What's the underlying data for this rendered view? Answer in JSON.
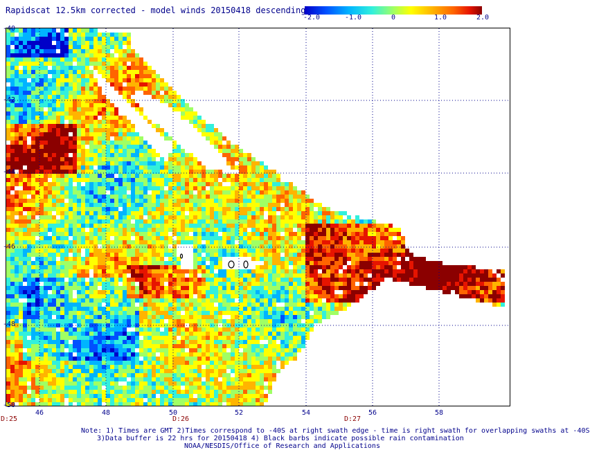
{
  "title": "Rapidscat 12.5km corrected - model winds 20150418 descending",
  "colorbar": {
    "ticks": [
      "-2.0",
      "-1.0",
      "0",
      "1.0",
      "2.0"
    ],
    "range": [
      -2.0,
      2.0
    ],
    "colors": [
      "#0000c8",
      "#0050ff",
      "#00b4ff",
      "#32f0dc",
      "#a0ff64",
      "#ffff00",
      "#ffb400",
      "#ff6400",
      "#e61400",
      "#8b0000"
    ]
  },
  "axes": {
    "lat_labels": [
      "-40",
      "-42",
      "-44",
      "-46",
      "-48",
      "-50"
    ],
    "lon_labels": [
      "46",
      "48",
      "50",
      "52",
      "54",
      "56",
      "58"
    ],
    "lat_range": [
      -50,
      -40
    ],
    "lon_range": [
      45.2,
      60
    ]
  },
  "time_labels": [
    "D:25",
    "D:26",
    "D:27"
  ],
  "notes": {
    "line1": "Note: 1) Times are GMT 2)Times correspond to -40S at right swath edge - time is right swath for overlapping swaths at -40S",
    "line2": "3)Data buffer is 22 hrs for 20150418 4) Black barbs indicate possible rain contamination",
    "line3": "NOAA/NESDIS/Office of Research and Applications"
  }
}
